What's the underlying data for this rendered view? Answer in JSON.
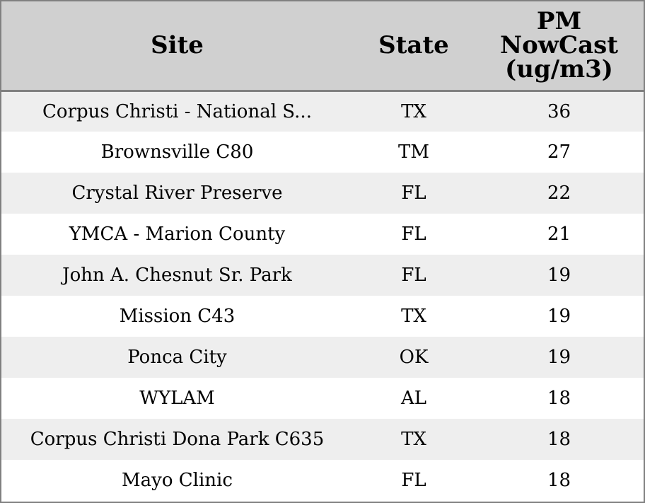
{
  "table": {
    "headers": {
      "site": "Site",
      "state": "State",
      "pm_line1": "PM",
      "pm_line2": "NowCast",
      "pm_line3": "(ug/m3)"
    },
    "rows": [
      {
        "site": "Corpus Christi - National S...",
        "state": "TX",
        "pm": "36"
      },
      {
        "site": "Brownsville C80",
        "state": "TM",
        "pm": "27"
      },
      {
        "site": "Crystal River Preserve",
        "state": "FL",
        "pm": "22"
      },
      {
        "site": "YMCA - Marion County",
        "state": "FL",
        "pm": "21"
      },
      {
        "site": "John A. Chesnut Sr. Park",
        "state": "FL",
        "pm": "19"
      },
      {
        "site": "Mission C43",
        "state": "TX",
        "pm": "19"
      },
      {
        "site": "Ponca City",
        "state": "OK",
        "pm": "19"
      },
      {
        "site": "WYLAM",
        "state": "AL",
        "pm": "18"
      },
      {
        "site": "Corpus Christi Dona Park C635",
        "state": "TX",
        "pm": "18"
      },
      {
        "site": "Mayo Clinic",
        "state": "FL",
        "pm": "18"
      }
    ]
  },
  "colors": {
    "header_bg": "#d0d0d0",
    "row_alt_bg": "#eeeeee",
    "border": "#808080"
  }
}
